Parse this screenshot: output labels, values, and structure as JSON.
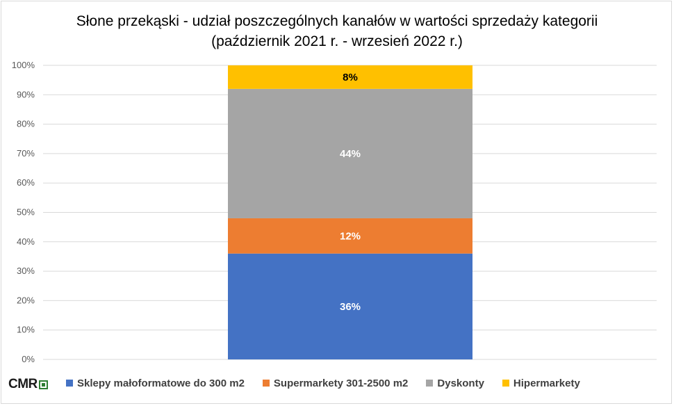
{
  "chart_data": {
    "type": "bar",
    "stacked": true,
    "percent_stacked": true,
    "title": "Słone przekąski - udział poszczególnych kanałów w wartości sprzedaży kategorii",
    "subtitle": "(październik 2021 r. - wrzesień 2022 r.)",
    "categories": [
      ""
    ],
    "ylim": [
      0,
      100
    ],
    "yticks": [
      "0%",
      "10%",
      "20%",
      "30%",
      "40%",
      "50%",
      "60%",
      "70%",
      "80%",
      "90%",
      "100%"
    ],
    "grid": true,
    "legend_position": "bottom",
    "series": [
      {
        "name": "Sklepy małoformatowe do 300 m2",
        "values": [
          36
        ],
        "label": "36%",
        "color": "#4472c4",
        "label_color": "#ffffff"
      },
      {
        "name": "Supermarkety 301-2500 m2",
        "values": [
          12
        ],
        "label": "12%",
        "color": "#ed7d31",
        "label_color": "#ffffff"
      },
      {
        "name": "Dyskonty",
        "values": [
          44
        ],
        "label": "44%",
        "color": "#a5a5a5",
        "label_color": "#ffffff"
      },
      {
        "name": "Hipermarkety",
        "values": [
          8
        ],
        "label": "8%",
        "color": "#ffc000",
        "label_color": "#000000"
      }
    ]
  },
  "logo": {
    "text": "CMR"
  }
}
